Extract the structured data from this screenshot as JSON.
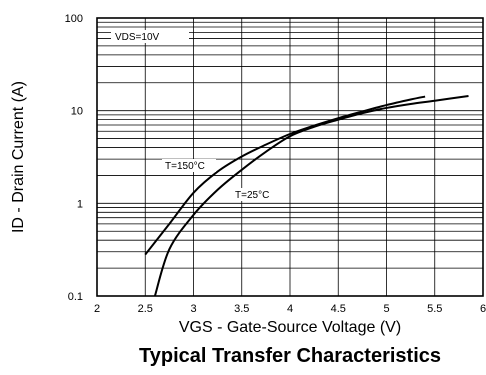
{
  "chart_data": {
    "type": "line",
    "title": "Typical Transfer Characteristics",
    "xlabel": "VGS - Gate-Source Voltage (V)",
    "ylabel": "ID - Drain Current (A)",
    "xlim": [
      2,
      6
    ],
    "ylim": [
      0.1,
      100
    ],
    "yscale": "log",
    "grid": true,
    "x_ticks": [
      "2",
      "2.5",
      "3",
      "3.5",
      "4",
      "4.5",
      "5",
      "5.5",
      "6"
    ],
    "y_ticks": [
      "0.1",
      "1",
      "10",
      "100"
    ],
    "annotation": "VDS=10V",
    "series": [
      {
        "name": "T=150°C",
        "x": [
          2.5,
          2.75,
          3.0,
          3.25,
          3.5,
          3.75,
          4.0,
          4.25,
          4.5,
          4.75,
          5.0,
          5.25,
          5.4
        ],
        "y": [
          0.28,
          0.6,
          1.3,
          2.2,
          3.2,
          4.3,
          5.6,
          6.9,
          8.3,
          9.8,
          11.5,
          13.2,
          14.2
        ]
      },
      {
        "name": "T=25°C",
        "x": [
          2.6,
          2.75,
          3.0,
          3.25,
          3.5,
          3.75,
          4.0,
          4.25,
          4.5,
          4.75,
          5.0,
          5.25,
          5.5,
          5.85
        ],
        "y": [
          0.1,
          0.32,
          0.75,
          1.4,
          2.3,
          3.6,
          5.3,
          6.7,
          8.0,
          9.4,
          10.7,
          11.8,
          12.8,
          14.4
        ]
      }
    ]
  }
}
